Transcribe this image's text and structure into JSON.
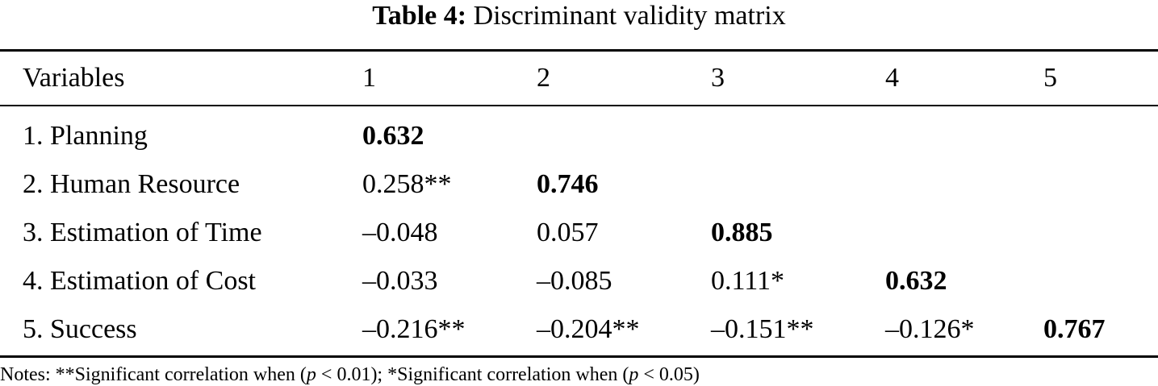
{
  "caption": {
    "label": "Table 4:",
    "text": "Discriminant validity matrix"
  },
  "header": [
    "Variables",
    "1",
    "2",
    "3",
    "4",
    "5"
  ],
  "rows": [
    {
      "variable": "1. Planning",
      "cells": [
        "0.632",
        "",
        "",
        "",
        ""
      ],
      "diagonal_index": 0
    },
    {
      "variable": "2. Human Resource",
      "cells": [
        "0.258**",
        "0.746",
        "",
        "",
        ""
      ],
      "diagonal_index": 1
    },
    {
      "variable": "3. Estimation of Time",
      "cells": [
        "–0.048",
        "0.057",
        "0.885",
        "",
        ""
      ],
      "diagonal_index": 2
    },
    {
      "variable": "4. Estimation of Cost",
      "cells": [
        "–0.033",
        "–0.085",
        "0.111*",
        "0.632",
        ""
      ],
      "diagonal_index": 3
    },
    {
      "variable": "5. Success",
      "cells": [
        "–0.216**",
        "–0.204**",
        "–0.151**",
        "–0.126*",
        "0.767"
      ],
      "diagonal_index": 4
    }
  ],
  "notes": {
    "prefix": "Notes: **Significant correlation when (",
    "p1": "p",
    "mid1": " < 0.01); *Significant correlation when (",
    "p2": "p",
    "suffix": " < 0.05)"
  }
}
